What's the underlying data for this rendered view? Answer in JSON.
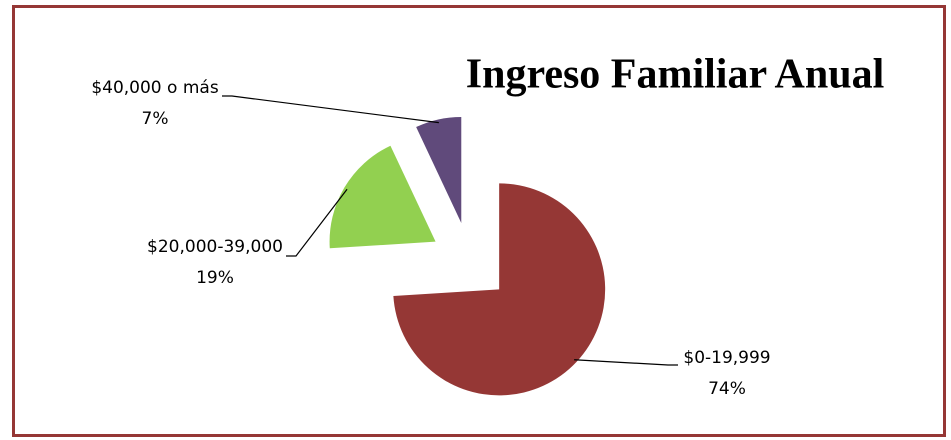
{
  "chart_data": {
    "type": "pie",
    "title": "Ingreso Familiar Anual",
    "categories": [
      "$0-19,999",
      "$20,000-39,000",
      "$40,000 o más"
    ],
    "values": [
      74,
      19,
      7
    ],
    "value_labels": [
      "74%",
      "19%",
      "7%"
    ],
    "colors": [
      "#953735",
      "#92d050",
      "#604a7b"
    ]
  }
}
